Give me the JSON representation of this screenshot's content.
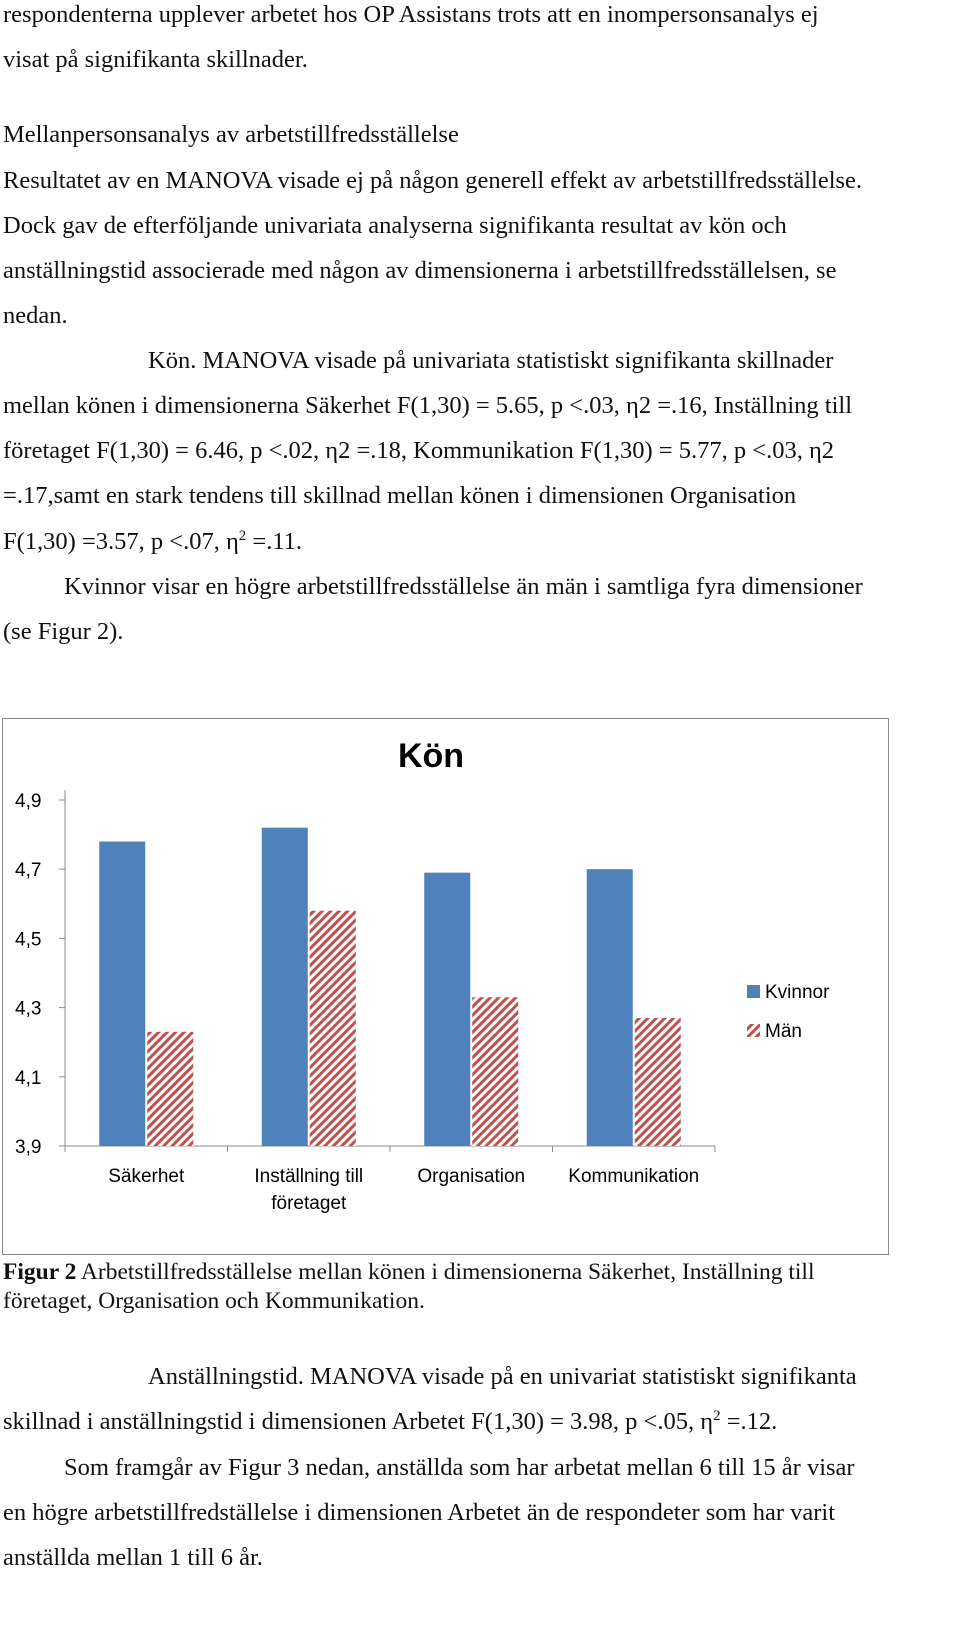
{
  "text": {
    "line1": "respondenterna upplever arbetet hos OP Assistans trots att en inompersonsanalys ej",
    "line2": "visat på signifikanta skillnader.",
    "heading": "Mellanpersonsanalys av arbetstillfredsställelse",
    "p1_l1": "Resultatet av en MANOVA visade ej på någon generell effekt av arbetstillfredsställelse.",
    "p1_l2": "Dock gav de efterföljande univariata analyserna signifikanta resultat av kön och",
    "p1_l3": "anställningstid associerade med någon av dimensionerna i arbetstillfredsställelsen, se",
    "p1_l4": "nedan.",
    "p2_l1": "Kön.  MANOVA visade på univariata statistiskt signifikanta skillnader",
    "p2_l2": "mellan könen i dimensionerna Säkerhet F(1,30) = 5.65, p <.03, η2 =.16, Inställning till",
    "p2_l3": "företaget F(1,30) = 6.46, p <.02, η2 =.18, Kommunikation F(1,30) = 5.77, p <.03, η2",
    "p2_l4": "=.17,samt en stark tendens till skillnad mellan könen i dimensionen Organisation",
    "p2_l5_a": "F(1,30) =3.57, p <.07, η",
    "p2_l5_sup": "2",
    "p2_l5_b": " =.11.",
    "p3_l1": "Kvinnor visar en högre arbetstillfredsställelse än män i samtliga fyra dimensioner",
    "p3_l2": "(se Figur 2).",
    "caption_label": "Figur 2",
    "caption_l1": " Arbetstillfredsställelse mellan könen i dimensionerna Säkerhet, Inställning till",
    "caption_l2": "företaget, Organisation och Kommunikation.",
    "p4_l1": "Anställningstid. MANOVA visade på en univariat statistiskt signifikanta",
    "p4_l2_a": "skillnad i anställningstid i dimensionen Arbetet F(1,30) = 3.98, p <.05, η",
    "p4_l2_sup": "2",
    "p4_l2_b": " =.12.",
    "p5_l1": "Som framgår av Figur 3 nedan, anställda som har arbetat mellan 6 till 15 år visar",
    "p5_l2": "en högre arbetstillfredställelse i dimensionen Arbetet än de respondeter som har varit",
    "p5_l3": "anställda mellan 1 till 6 år."
  },
  "chart_data": {
    "type": "bar",
    "title": "Kön",
    "categories": [
      "Säkerhet",
      "Inställning till företaget",
      "Organisation",
      "Kommunikation"
    ],
    "category_lines": [
      [
        "Säkerhet"
      ],
      [
        "Inställning till",
        "företaget"
      ],
      [
        "Organisation"
      ],
      [
        "Kommunikation"
      ]
    ],
    "series": [
      {
        "name": "Kvinnor",
        "values": [
          4.78,
          4.82,
          4.69,
          4.7
        ],
        "color": "#4f81bd",
        "pattern": "solid"
      },
      {
        "name": "Män",
        "values": [
          4.23,
          4.58,
          4.33,
          4.27
        ],
        "color": "#c0504d",
        "pattern": "diagonal-hatch"
      }
    ],
    "ylim": [
      3.9,
      4.9
    ],
    "yticks": [
      "3,9",
      "4,1",
      "4,3",
      "4,5",
      "4,7",
      "4,9"
    ],
    "ytick_values": [
      3.9,
      4.1,
      4.3,
      4.5,
      4.7,
      4.9
    ],
    "grid": false,
    "legend": "right"
  }
}
